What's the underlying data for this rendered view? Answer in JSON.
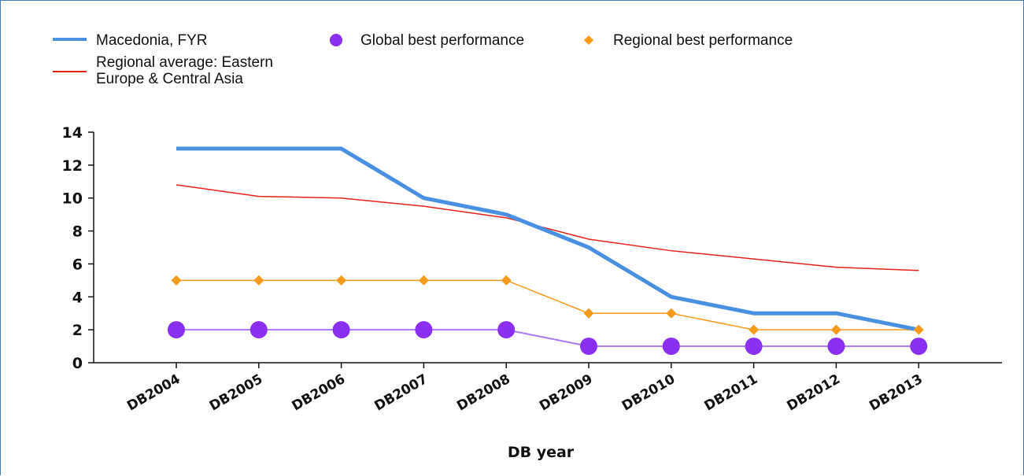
{
  "colors": {
    "macedonia": "#4a90e2",
    "regional_average": "#e8201a",
    "global_best": "#8b2ff0",
    "global_best_line": "#a87af0",
    "regional_best": "#f59a1a",
    "axis": "#111111",
    "frame": "#4a7ab5"
  },
  "chart_data": {
    "type": "line",
    "title": "",
    "xlabel": "DB year",
    "ylabel": "",
    "ylim": [
      0,
      14
    ],
    "yticks": [
      0,
      2,
      4,
      6,
      8,
      10,
      12,
      14
    ],
    "grid": false,
    "legend_position": "top-left",
    "categories": [
      "DB2004",
      "DB2005",
      "DB2006",
      "DB2007",
      "DB2008",
      "DB2009",
      "DB2010",
      "DB2011",
      "DB2012",
      "DB2013"
    ],
    "series": [
      {
        "key": "macedonia",
        "name": "Macedonia, FYR",
        "style": "thick-line",
        "values": [
          13,
          13,
          13,
          10,
          9,
          7,
          4,
          3,
          3,
          2
        ]
      },
      {
        "key": "regional_average",
        "name_lines": [
          "Regional average: Eastern",
          "Europe & Central Asia"
        ],
        "style": "thin-line",
        "values": [
          10.8,
          10.1,
          10,
          9.5,
          8.8,
          7.5,
          6.8,
          6.3,
          5.8,
          5.6
        ]
      },
      {
        "key": "global_best",
        "name": "Global best performance",
        "style": "circle-markers",
        "values": [
          2,
          2,
          2,
          2,
          2,
          1,
          1,
          1,
          1,
          1
        ]
      },
      {
        "key": "regional_best",
        "name": "Regional best performance",
        "style": "diamond-markers",
        "values": [
          5,
          5,
          5,
          5,
          5,
          3,
          3,
          2,
          2,
          2
        ]
      }
    ]
  }
}
